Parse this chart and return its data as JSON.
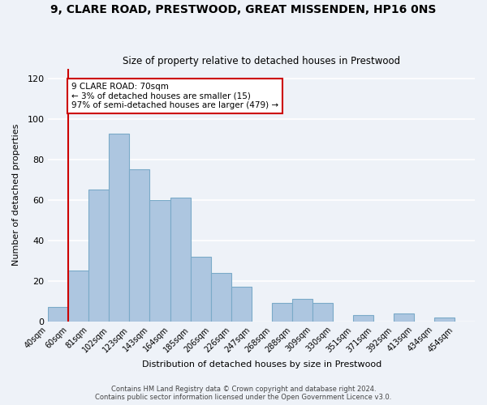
{
  "title": "9, CLARE ROAD, PRESTWOOD, GREAT MISSENDEN, HP16 0NS",
  "subtitle": "Size of property relative to detached houses in Prestwood",
  "xlabel": "Distribution of detached houses by size in Prestwood",
  "ylabel": "Number of detached properties",
  "bar_labels": [
    "40sqm",
    "60sqm",
    "81sqm",
    "102sqm",
    "123sqm",
    "143sqm",
    "164sqm",
    "185sqm",
    "206sqm",
    "226sqm",
    "247sqm",
    "268sqm",
    "288sqm",
    "309sqm",
    "330sqm",
    "351sqm",
    "371sqm",
    "392sqm",
    "413sqm",
    "434sqm",
    "454sqm"
  ],
  "bar_values": [
    7,
    25,
    65,
    93,
    75,
    60,
    61,
    32,
    24,
    17,
    0,
    9,
    11,
    9,
    0,
    3,
    0,
    4,
    0,
    2,
    0
  ],
  "bar_color": "#adc6e0",
  "bar_edge_color": "#7aaac8",
  "vline_color": "#cc0000",
  "vline_x": 1.0,
  "annotation_text": "9 CLARE ROAD: 70sqm\n← 3% of detached houses are smaller (15)\n97% of semi-detached houses are larger (479) →",
  "annotation_box_color": "#cc0000",
  "ylim": [
    0,
    125
  ],
  "yticks": [
    0,
    20,
    40,
    60,
    80,
    100,
    120
  ],
  "footer1": "Contains HM Land Registry data © Crown copyright and database right 2024.",
  "footer2": "Contains public sector information licensed under the Open Government Licence v3.0.",
  "bg_color": "#eef2f8",
  "grid_color": "#ffffff"
}
